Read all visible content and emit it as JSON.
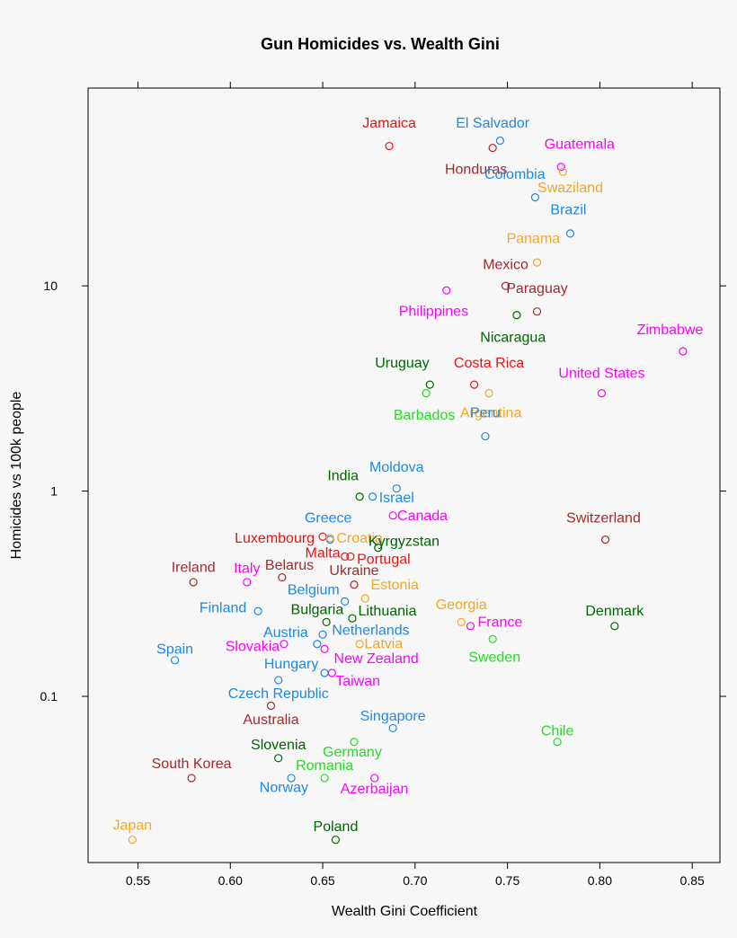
{
  "chart_data": {
    "type": "scatter",
    "title": "Gun Homicides vs. Wealth Gini",
    "xlabel": "Wealth Gini Coefficient",
    "ylabel": "Homicides vs 100k people",
    "xlim": [
      0.523,
      0.865
    ],
    "ylim": [
      0.0155,
      92
    ],
    "y_scale": "log",
    "grid": false,
    "x_ticks": [
      0.55,
      0.6,
      0.65,
      0.7,
      0.75,
      0.8,
      0.85
    ],
    "x_tick_labels": [
      "0.55",
      "0.60",
      "0.65",
      "0.70",
      "0.75",
      "0.80",
      "0.85"
    ],
    "y_ticks": [
      0.1,
      1,
      10
    ],
    "y_tick_labels": [
      "0.1",
      "1",
      "10"
    ],
    "points": [
      {
        "label": "Jamaica",
        "x": 0.686,
        "y": 48,
        "color": "#ee1111",
        "label_x": 0.686,
        "label_y": 62
      },
      {
        "label": "El Salvador",
        "x": 0.746,
        "y": 51,
        "color": "#1e88e5",
        "label_x": 0.742,
        "label_y": 62
      },
      {
        "label": "Honduras",
        "x": 0.742,
        "y": 47,
        "color": "#a52a2a",
        "label_x": 0.733,
        "label_y": 37
      },
      {
        "label": "Guatemala",
        "x": 0.779,
        "y": 38,
        "color": "#ff00ff",
        "label_x": 0.789,
        "label_y": 49
      },
      {
        "label": "Swaziland",
        "x": 0.78,
        "y": 36,
        "color": "#f5a623",
        "label_x": 0.784,
        "label_y": 30
      },
      {
        "label": "Colombia",
        "x": 0.765,
        "y": 27,
        "color": "#1e88e5",
        "label_x": 0.754,
        "label_y": 35
      },
      {
        "label": "Brazil",
        "x": 0.784,
        "y": 18,
        "color": "#1e88e5",
        "label_x": 0.783,
        "label_y": 23.5
      },
      {
        "label": "Panama",
        "x": 0.766,
        "y": 13,
        "color": "#f5a623",
        "label_x": 0.764,
        "label_y": 17
      },
      {
        "label": "Mexico",
        "x": 0.749,
        "y": 10,
        "color": "#a52a2a",
        "label_x": 0.749,
        "label_y": 12.7
      },
      {
        "label": "Philippines",
        "x": 0.717,
        "y": 9.5,
        "color": "#ff00ff",
        "label_x": 0.71,
        "label_y": 7.5
      },
      {
        "label": "Paraguay",
        "x": 0.766,
        "y": 7.5,
        "color": "#a52a2a",
        "label_x": 0.766,
        "label_y": 9.7
      },
      {
        "label": "Nicaragua",
        "x": 0.755,
        "y": 7.2,
        "color": "#006400",
        "label_x": 0.753,
        "label_y": 5.6
      },
      {
        "label": "Zimbabwe",
        "x": 0.845,
        "y": 4.8,
        "color": "#ff00ff",
        "label_x": 0.838,
        "label_y": 6.1
      },
      {
        "label": "Uruguay",
        "x": 0.708,
        "y": 3.3,
        "color": "#006400",
        "label_x": 0.693,
        "label_y": 4.2
      },
      {
        "label": "Costa Rica",
        "x": 0.732,
        "y": 3.3,
        "color": "#ee1111",
        "label_x": 0.74,
        "label_y": 4.2
      },
      {
        "label": "United States",
        "x": 0.801,
        "y": 3.0,
        "color": "#ff00ff",
        "label_x": 0.801,
        "label_y": 3.75
      },
      {
        "label": "Barbados",
        "x": 0.706,
        "y": 3.0,
        "color": "#22dd22",
        "label_x": 0.705,
        "label_y": 2.35
      },
      {
        "label": "Argentina",
        "x": 0.74,
        "y": 3.0,
        "color": "#f5a623",
        "label_x": 0.741,
        "label_y": 2.4
      },
      {
        "label": "Peru",
        "x": 0.738,
        "y": 1.85,
        "color": "#1e88e5",
        "label_x": 0.738,
        "label_y": 2.4
      },
      {
        "label": "Moldova",
        "x": 0.69,
        "y": 1.03,
        "color": "#1e88e5",
        "label_x": 0.69,
        "label_y": 1.31
      },
      {
        "label": "India",
        "x": 0.67,
        "y": 0.94,
        "color": "#006400",
        "label_x": 0.661,
        "label_y": 1.19
      },
      {
        "label": "Israel",
        "x": 0.677,
        "y": 0.94,
        "color": "#1e88e5",
        "label_x": 0.69,
        "label_y": 0.93
      },
      {
        "label": "Canada",
        "x": 0.688,
        "y": 0.76,
        "color": "#ff00ff",
        "label_x": 0.704,
        "label_y": 0.76
      },
      {
        "label": "Greece",
        "x": 0.654,
        "y": 0.58,
        "color": "#1e88e5",
        "label_x": 0.653,
        "label_y": 0.74
      },
      {
        "label": "Luxembourg",
        "x": 0.65,
        "y": 0.6,
        "color": "#ee1111",
        "label_x": 0.624,
        "label_y": 0.59
      },
      {
        "label": "Croatia",
        "x": 0.654,
        "y": 0.59,
        "color": "#f5a623",
        "label_x": 0.67,
        "label_y": 0.59
      },
      {
        "label": "Kyrgyzstan",
        "x": 0.68,
        "y": 0.53,
        "color": "#006400",
        "label_x": 0.694,
        "label_y": 0.57
      },
      {
        "label": "Switzerland",
        "x": 0.803,
        "y": 0.58,
        "color": "#a52a2a",
        "label_x": 0.802,
        "label_y": 0.74
      },
      {
        "label": "Malta",
        "x": 0.662,
        "y": 0.48,
        "color": "#ee1111",
        "label_x": 0.65,
        "label_y": 0.5
      },
      {
        "label": "Portugal",
        "x": 0.665,
        "y": 0.48,
        "color": "#ee1111",
        "label_x": 0.683,
        "label_y": 0.465
      },
      {
        "label": "Ireland",
        "x": 0.58,
        "y": 0.36,
        "color": "#a52a2a",
        "label_x": 0.58,
        "label_y": 0.425
      },
      {
        "label": "Italy",
        "x": 0.609,
        "y": 0.36,
        "color": "#ff00ff",
        "label_x": 0.609,
        "label_y": 0.42
      },
      {
        "label": "Belarus",
        "x": 0.628,
        "y": 0.38,
        "color": "#a52a2a",
        "label_x": 0.632,
        "label_y": 0.435
      },
      {
        "label": "Ukraine",
        "x": 0.667,
        "y": 0.35,
        "color": "#a52a2a",
        "label_x": 0.667,
        "label_y": 0.41
      },
      {
        "label": "Estonia",
        "x": 0.673,
        "y": 0.3,
        "color": "#f5a623",
        "label_x": 0.689,
        "label_y": 0.35
      },
      {
        "label": "Belgium",
        "x": 0.662,
        "y": 0.29,
        "color": "#1e88e5",
        "label_x": 0.645,
        "label_y": 0.33
      },
      {
        "label": "Finland",
        "x": 0.615,
        "y": 0.26,
        "color": "#1e88e5",
        "label_x": 0.596,
        "label_y": 0.27
      },
      {
        "label": "Bulgaria",
        "x": 0.652,
        "y": 0.23,
        "color": "#006400",
        "label_x": 0.647,
        "label_y": 0.265
      },
      {
        "label": "Lithuania",
        "x": 0.666,
        "y": 0.24,
        "color": "#006400",
        "label_x": 0.685,
        "label_y": 0.26
      },
      {
        "label": "Georgia",
        "x": 0.725,
        "y": 0.23,
        "color": "#f5a623",
        "label_x": 0.725,
        "label_y": 0.28
      },
      {
        "label": "France",
        "x": 0.73,
        "y": 0.22,
        "color": "#ff00ff",
        "label_x": 0.746,
        "label_y": 0.23
      },
      {
        "label": "Denmark",
        "x": 0.808,
        "y": 0.22,
        "color": "#006400",
        "label_x": 0.808,
        "label_y": 0.26
      },
      {
        "label": "Netherlands",
        "x": 0.65,
        "y": 0.2,
        "color": "#1e88e5",
        "label_x": 0.676,
        "label_y": 0.21
      },
      {
        "label": "Austria",
        "x": 0.647,
        "y": 0.18,
        "color": "#1e88e5",
        "label_x": 0.63,
        "label_y": 0.205
      },
      {
        "label": "Latvia",
        "x": 0.67,
        "y": 0.18,
        "color": "#f5a623",
        "label_x": 0.683,
        "label_y": 0.18
      },
      {
        "label": "Sweden",
        "x": 0.742,
        "y": 0.19,
        "color": "#22dd22",
        "label_x": 0.743,
        "label_y": 0.155
      },
      {
        "label": "Spain",
        "x": 0.57,
        "y": 0.15,
        "color": "#1e88e5",
        "label_x": 0.57,
        "label_y": 0.17
      },
      {
        "label": "Slovakia",
        "x": 0.629,
        "y": 0.18,
        "color": "#ff00ff",
        "label_x": 0.612,
        "label_y": 0.175
      },
      {
        "label": "New Zealand",
        "x": 0.651,
        "y": 0.17,
        "color": "#ff00ff",
        "label_x": 0.679,
        "label_y": 0.153
      },
      {
        "label": "Hungary",
        "x": 0.651,
        "y": 0.13,
        "color": "#1e88e5",
        "label_x": 0.633,
        "label_y": 0.144
      },
      {
        "label": "Taiwan",
        "x": 0.655,
        "y": 0.13,
        "color": "#ff00ff",
        "label_x": 0.669,
        "label_y": 0.119
      },
      {
        "label": "Czech Republic",
        "x": 0.626,
        "y": 0.12,
        "color": "#1e88e5",
        "label_x": 0.626,
        "label_y": 0.103
      },
      {
        "label": "Australia",
        "x": 0.622,
        "y": 0.09,
        "color": "#a52a2a",
        "label_x": 0.622,
        "label_y": 0.077
      },
      {
        "label": "Singapore",
        "x": 0.688,
        "y": 0.07,
        "color": "#1e88e5",
        "label_x": 0.688,
        "label_y": 0.08
      },
      {
        "label": "Chile",
        "x": 0.777,
        "y": 0.06,
        "color": "#22dd22",
        "label_x": 0.777,
        "label_y": 0.068
      },
      {
        "label": "Slovenia",
        "x": 0.626,
        "y": 0.05,
        "color": "#006400",
        "label_x": 0.626,
        "label_y": 0.058
      },
      {
        "label": "Germany",
        "x": 0.667,
        "y": 0.06,
        "color": "#22dd22",
        "label_x": 0.666,
        "label_y": 0.0535
      },
      {
        "label": "South Korea",
        "x": 0.579,
        "y": 0.04,
        "color": "#a52a2a",
        "label_x": 0.579,
        "label_y": 0.047
      },
      {
        "label": "Romania",
        "x": 0.651,
        "y": 0.04,
        "color": "#22dd22",
        "label_x": 0.651,
        "label_y": 0.046
      },
      {
        "label": "Norway",
        "x": 0.633,
        "y": 0.04,
        "color": "#1e88e5",
        "label_x": 0.629,
        "label_y": 0.036
      },
      {
        "label": "Azerbaijan",
        "x": 0.678,
        "y": 0.04,
        "color": "#ff00ff",
        "label_x": 0.678,
        "label_y": 0.0355
      },
      {
        "label": "Japan",
        "x": 0.547,
        "y": 0.02,
        "color": "#f5a623",
        "label_x": 0.547,
        "label_y": 0.0235
      },
      {
        "label": "Poland",
        "x": 0.657,
        "y": 0.02,
        "color": "#006400",
        "label_x": 0.657,
        "label_y": 0.0232
      }
    ]
  }
}
